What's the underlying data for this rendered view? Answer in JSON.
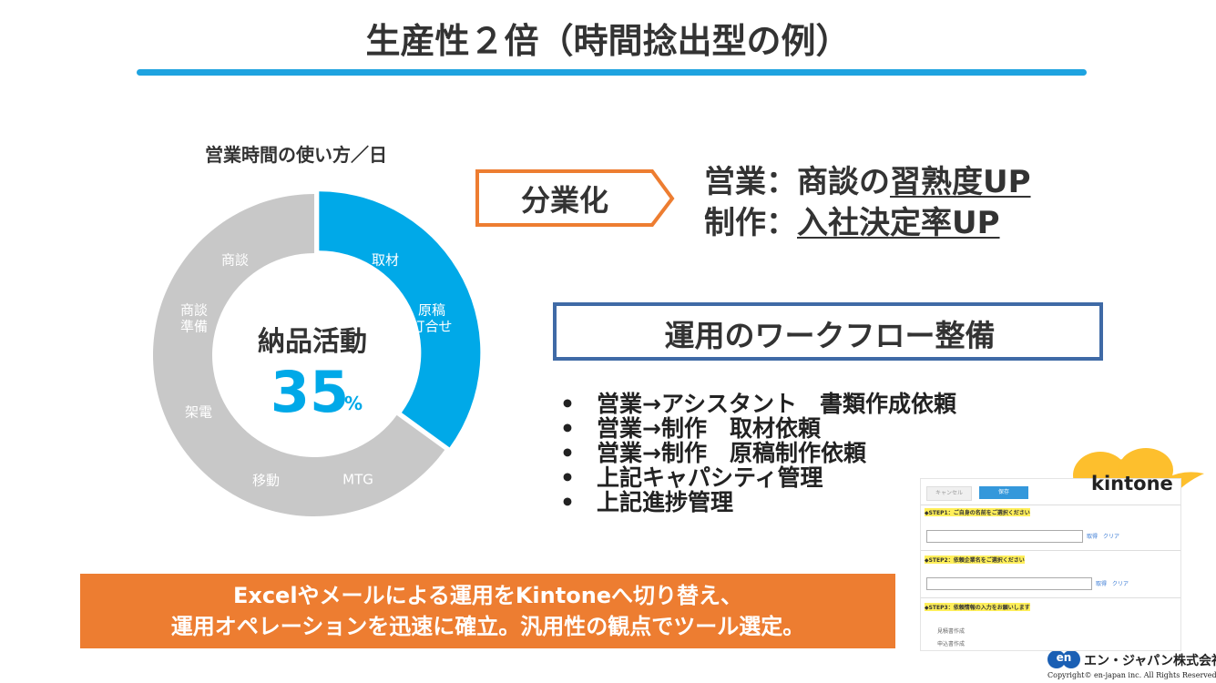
{
  "title": "生産性２倍（時間捻出型の例）",
  "chart_data": {
    "type": "donut",
    "title": "営業時間の使い方／日",
    "center_label": "納品活動",
    "value": 35,
    "unit": "%",
    "highlight_color": "#00a9e8",
    "rest_color": "#c8c8c8",
    "highlight_labels": [
      [
        "取材"
      ],
      [
        "原稿",
        "打合せ"
      ]
    ],
    "rest_labels": [
      [
        "MTG"
      ],
      [
        "移動"
      ],
      [
        "架電"
      ],
      [
        "商談",
        "準備"
      ],
      [
        "商談"
      ]
    ]
  },
  "division": {
    "label": "分業化",
    "lines": [
      {
        "head": "営業：商談の",
        "underlined": "習熟度UP"
      },
      {
        "head": "制作：",
        "underlined": "入社決定率UP"
      }
    ]
  },
  "workflow": {
    "title": "運用のワークフロー整備",
    "bullets": [
      "営業→アシスタント　書類作成依頼",
      "営業→制作　取材依頼",
      "営業→制作　原稿制作依頼",
      "上記キャパシティ管理",
      "上記進捗管理"
    ]
  },
  "banner": {
    "lines": [
      "Excelやメールによる運用をKintoneへ切り替え、",
      "運用オペレーションを迅速に確立。汎用性の観点でツール選定。"
    ]
  },
  "screenshot": {
    "buttons": [
      "キャンセル",
      "保存"
    ],
    "steps": [
      "◆STEP1：ご自身の名前をご選択ください",
      "◆STEP2：依頼企業名をご選択ください",
      "◆STEP3：依頼情報の入力をお願いします"
    ],
    "links": [
      "取得　クリア",
      "取得　クリア"
    ],
    "options": [
      "見積書作成",
      "申込書作成"
    ]
  },
  "kintone": "kintone",
  "footer": {
    "logo": "en",
    "company": "エン・ジャパン株式会社",
    "copyright": "Copyright© en-japan inc. All Rights Reserved."
  }
}
